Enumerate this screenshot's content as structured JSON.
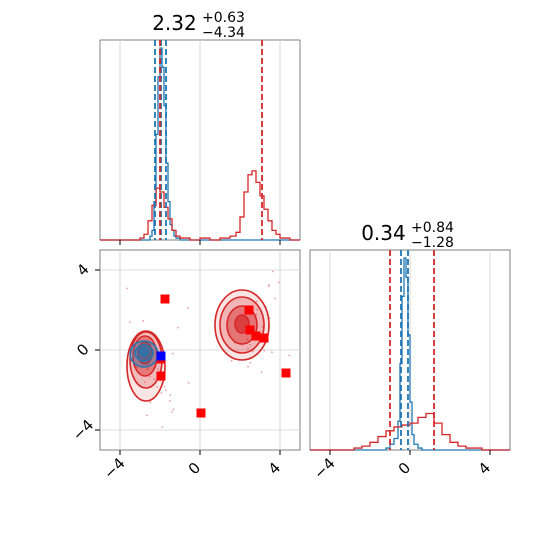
{
  "chart_data": [
    {
      "panel": "top-left",
      "type": "histogram",
      "title": {
        "value": "2.32",
        "plus": "+0.63",
        "minus": "−4.34"
      },
      "xlim": [
        -5,
        5
      ],
      "grid": true,
      "series": [
        {
          "color": "#1f77b4",
          "bin_edges": [
            -5,
            -4.5,
            -4,
            -3.5,
            -3,
            -2.5,
            -2.4,
            -2.3,
            -2.2,
            -2.1,
            -2.0,
            -1.9,
            -1.8,
            -1.7,
            -1.6,
            -1.5,
            -1.4,
            -1.3,
            -1.2,
            -1.0,
            5
          ],
          "heights": [
            0,
            0,
            0,
            0,
            0,
            0.02,
            0.05,
            0.2,
            0.55,
            0.85,
            1.0,
            0.9,
            0.7,
            0.4,
            0.2,
            0.08,
            0.05,
            0.02,
            0.01,
            0
          ],
          "quantiles": [
            -2.25,
            -1.95,
            -1.7
          ]
        },
        {
          "color": "#d62728",
          "bin_edges": [
            -5,
            -3.0,
            -2.8,
            -2.6,
            -2.4,
            -2.2,
            -2.0,
            -1.8,
            -1.6,
            -1.4,
            -1.2,
            -1.0,
            -0.5,
            0,
            0.5,
            1.0,
            1.5,
            1.8,
            2.0,
            2.2,
            2.4,
            2.6,
            2.8,
            3.0,
            3.2,
            3.4,
            3.6,
            3.8,
            4.0,
            4.5,
            5
          ],
          "heights": [
            0,
            0.01,
            0.03,
            0.1,
            0.18,
            0.27,
            0.25,
            0.17,
            0.11,
            0.05,
            0.02,
            0.01,
            0,
            0.01,
            0,
            0.01,
            0.02,
            0.04,
            0.12,
            0.25,
            0.34,
            0.36,
            0.3,
            0.23,
            0.16,
            0.1,
            0.05,
            0.03,
            0.01,
            0
          ],
          "quantiles": [
            -2.0,
            3.1
          ]
        }
      ]
    },
    {
      "panel": "bottom-left",
      "type": "contour-scatter",
      "xlim": [
        -5,
        5
      ],
      "ylim": [
        -5,
        5
      ],
      "xticks": [
        "−4",
        "0",
        "4"
      ],
      "yticks": [
        "4",
        "0",
        "−4"
      ],
      "grid": true,
      "truth_markers": [
        {
          "x": -1.75,
          "y": 2.55,
          "color": "#ff0000"
        },
        {
          "x": 2.45,
          "y": 2.0,
          "color": "#ff0000"
        },
        {
          "x": 2.5,
          "y": 1.0,
          "color": "#ff0000"
        },
        {
          "x": 2.8,
          "y": 0.7,
          "color": "#ff0000"
        },
        {
          "x": 3.2,
          "y": 0.6,
          "color": "#ff0000"
        },
        {
          "x": -1.95,
          "y": -0.45,
          "color": "#ff0000"
        },
        {
          "x": -1.95,
          "y": -1.3,
          "color": "#ff0000"
        },
        {
          "x": 4.3,
          "y": -1.15,
          "color": "#ff0000"
        },
        {
          "x": 0.05,
          "y": -3.15,
          "color": "#ff0000"
        },
        {
          "x": -1.95,
          "y": -0.3,
          "color": "#0000ff"
        }
      ]
    },
    {
      "panel": "bottom-right",
      "type": "histogram",
      "title": {
        "value": "0.34",
        "plus": "+0.84",
        "minus": "−1.28"
      },
      "xlim": [
        -5,
        5
      ],
      "xticks": [
        "−4",
        "0",
        "4"
      ],
      "grid": true,
      "series": [
        {
          "color": "#1f77b4",
          "bin_edges": [
            -5,
            -1.2,
            -1.0,
            -0.8,
            -0.6,
            -0.5,
            -0.4,
            -0.3,
            -0.2,
            -0.1,
            0.0,
            0.1,
            0.2,
            0.4,
            0.6,
            5
          ],
          "heights": [
            0,
            0.01,
            0.03,
            0.06,
            0.15,
            0.45,
            0.8,
            1.0,
            0.9,
            0.6,
            0.25,
            0.08,
            0.03,
            0.01,
            0
          ],
          "quantiles": [
            -0.45,
            -0.1
          ]
        },
        {
          "color": "#d62728",
          "bin_edges": [
            -5,
            -2.8,
            -2.4,
            -2.0,
            -1.6,
            -1.2,
            -0.8,
            -0.4,
            0.0,
            0.4,
            0.8,
            1.2,
            1.6,
            2.0,
            2.4,
            2.8,
            3.2,
            3.6,
            5
          ],
          "heights": [
            0,
            0.01,
            0.02,
            0.04,
            0.07,
            0.1,
            0.12,
            0.13,
            0.14,
            0.17,
            0.19,
            0.14,
            0.08,
            0.04,
            0.02,
            0.01,
            0.01,
            0
          ],
          "quantiles": [
            -1.0,
            1.2
          ]
        }
      ]
    }
  ]
}
